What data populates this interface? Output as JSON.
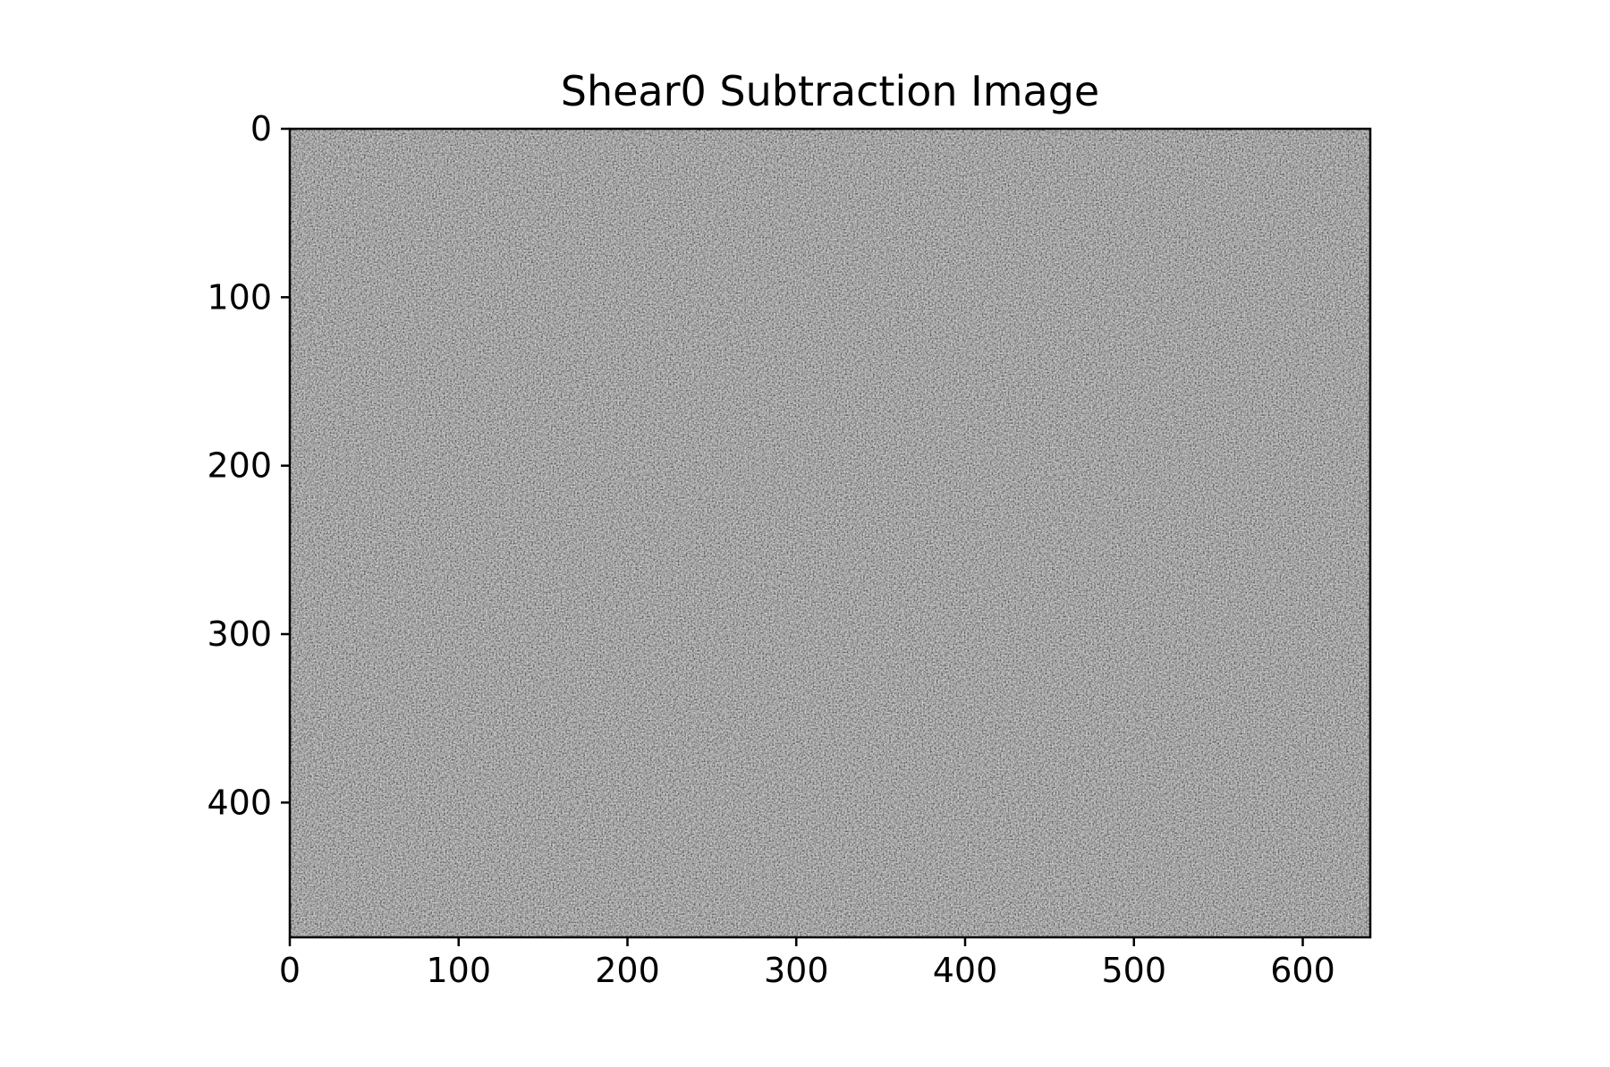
{
  "chart_data": {
    "type": "heatmap",
    "title": "Shear0 Subtraction Image",
    "xlabel": "",
    "ylabel": "",
    "xlim": [
      0,
      640
    ],
    "ylim": [
      480,
      0
    ],
    "x_ticks": [
      0,
      100,
      200,
      300,
      400,
      500,
      600
    ],
    "y_ticks": [
      0,
      100,
      200,
      300,
      400
    ],
    "colormap": "gray",
    "image_size": {
      "width": 640,
      "height": 480
    },
    "tone_regions": [
      {
        "description": "bright",
        "center": [
          170,
          90
        ]
      },
      {
        "description": "bright",
        "center": [
          470,
          420
        ]
      },
      {
        "description": "bright",
        "center": [
          540,
          130
        ]
      },
      {
        "description": "dark",
        "center": [
          200,
          370
        ]
      },
      {
        "description": "dark",
        "center": [
          460,
          180
        ]
      },
      {
        "description": "dark",
        "center": [
          600,
          60
        ]
      }
    ],
    "grid": false,
    "legend": "none"
  },
  "colors": {
    "background": "#ffffff",
    "axis": "#000000"
  }
}
